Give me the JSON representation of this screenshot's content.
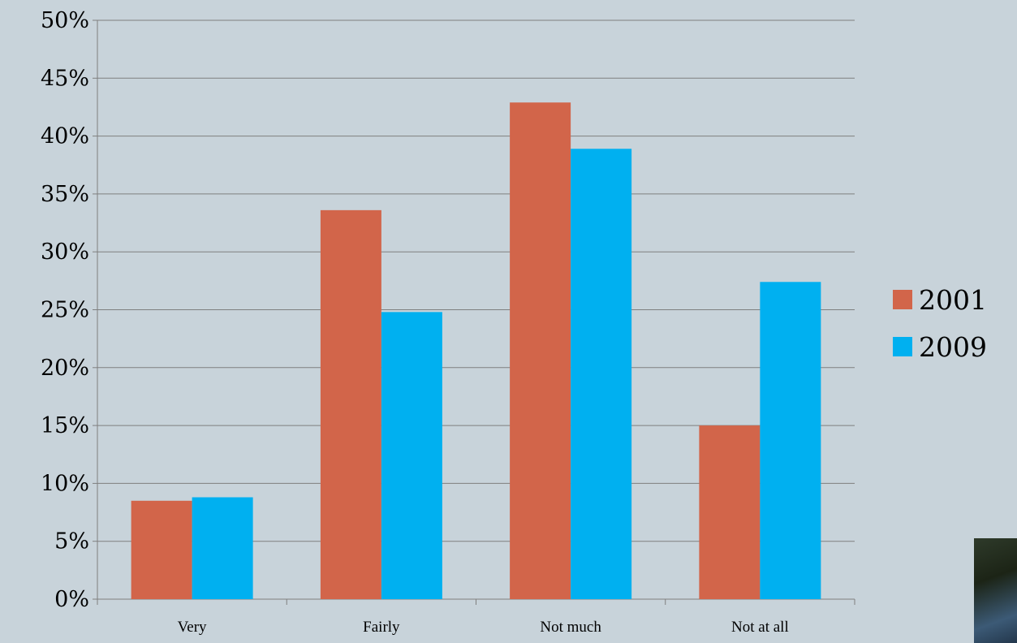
{
  "chart_data": {
    "type": "bar",
    "categories": [
      "Very",
      "Fairly",
      "Not much",
      "Not at all"
    ],
    "series": [
      {
        "name": "2001",
        "values": [
          8.5,
          33.6,
          42.9,
          15.0
        ],
        "color": "#d2654a"
      },
      {
        "name": "2009",
        "values": [
          8.8,
          24.8,
          38.9,
          27.4
        ],
        "color": "#00b0f0"
      }
    ],
    "ylim": [
      0,
      50
    ],
    "ytick_step": 5,
    "ytick_labels": [
      "0%",
      "5%",
      "10%",
      "15%",
      "20%",
      "25%",
      "30%",
      "35%",
      "40%",
      "45%",
      "50%"
    ],
    "grid": true,
    "legend": "right",
    "title": "",
    "xlabel": "",
    "ylabel": ""
  },
  "decor": {
    "corner_image": "photo-thumbnail"
  }
}
